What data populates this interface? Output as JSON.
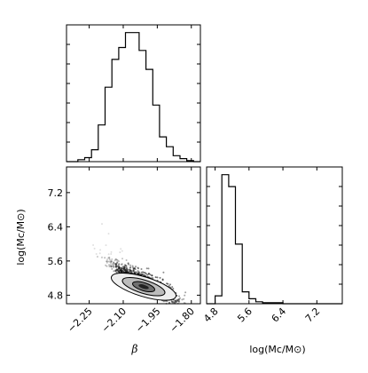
{
  "chart_data": [
    {
      "type": "histogram",
      "variable": "beta",
      "x_range": [
        -2.35,
        -1.76
      ],
      "bin_edges": [
        -2.3,
        -2.27,
        -2.24,
        -2.21,
        -2.18,
        -2.15,
        -2.12,
        -2.09,
        -2.06,
        -2.03,
        -2.0,
        -1.97,
        -1.94,
        -1.91,
        -1.88,
        -1.85,
        -1.82,
        -1.79
      ],
      "counts": [
        2,
        4,
        12,
        37,
        75,
        103,
        115,
        130,
        130,
        112,
        93,
        57,
        25,
        15,
        6,
        3,
        1
      ],
      "x_ticks": [],
      "y_ticks": []
    },
    {
      "type": "scatter",
      "style": "2d density with contours",
      "x_variable": "beta",
      "y_variable": "log(Mc/M_sun)",
      "x_range": [
        -2.35,
        -1.76
      ],
      "y_range": [
        4.6,
        7.8
      ],
      "x_ticks": [
        "−2.25",
        "−2.10",
        "−1.95",
        "−1.80"
      ],
      "y_ticks": [
        "4.8",
        "5.6",
        "6.4",
        "7.2"
      ],
      "xlabel": "β",
      "ylabel": "log(Mc/M⊙)",
      "density_peak": {
        "x": -2.01,
        "y": 5.0
      },
      "contour_levels": 3
    },
    {
      "type": "histogram",
      "variable": "log(Mc/M_sun)",
      "x_range": [
        4.6,
        7.8
      ],
      "bin_edges": [
        4.8,
        4.96,
        5.12,
        5.28,
        5.44,
        5.6,
        5.76,
        5.92,
        6.08,
        6.24,
        6.4
      ],
      "counts": [
        8,
        130,
        118,
        60,
        12,
        5,
        2,
        1,
        1,
        1
      ],
      "x_ticks": [
        "4.8",
        "5.6",
        "6.4",
        "7.2"
      ],
      "xlabel": "log(Mc/M⊙)"
    }
  ],
  "labels": {
    "beta_axis": "β",
    "mass_axis_x": "log(Mc/M⊙)",
    "mass_axis_y": "log(Mc/M⊙)"
  }
}
